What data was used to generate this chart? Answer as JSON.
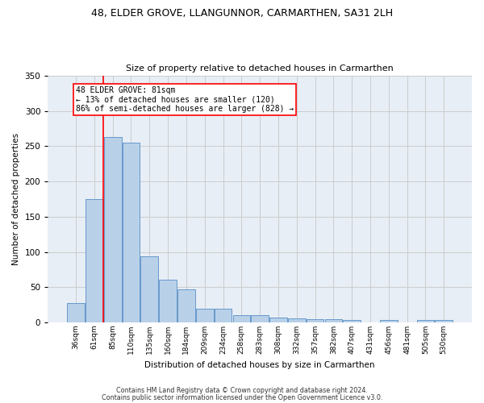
{
  "title1": "48, ELDER GROVE, LLANGUNNOR, CARMARTHEN, SA31 2LH",
  "title2": "Size of property relative to detached houses in Carmarthen",
  "xlabel": "Distribution of detached houses by size in Carmarthen",
  "ylabel": "Number of detached properties",
  "bin_labels": [
    "36sqm",
    "61sqm",
    "85sqm",
    "110sqm",
    "135sqm",
    "160sqm",
    "184sqm",
    "209sqm",
    "234sqm",
    "258sqm",
    "283sqm",
    "308sqm",
    "332sqm",
    "357sqm",
    "382sqm",
    "407sqm",
    "431sqm",
    "456sqm",
    "481sqm",
    "505sqm",
    "530sqm"
  ],
  "bar_values": [
    27,
    175,
    263,
    255,
    94,
    61,
    47,
    19,
    19,
    10,
    10,
    7,
    6,
    5,
    5,
    4,
    0,
    4,
    0,
    4,
    4
  ],
  "bar_color": "#b8d0e8",
  "bar_edge_color": "#6699cc",
  "grid_color": "#cccccc",
  "background_color": "#e8eef6",
  "red_line_x": 1.5,
  "annotation_text": "48 ELDER GROVE: 81sqm\n← 13% of detached houses are smaller (120)\n86% of semi-detached houses are larger (828) →",
  "footer1": "Contains HM Land Registry data © Crown copyright and database right 2024.",
  "footer2": "Contains public sector information licensed under the Open Government Licence v3.0.",
  "ylim": [
    0,
    350
  ],
  "yticks": [
    0,
    50,
    100,
    150,
    200,
    250,
    300,
    350
  ]
}
